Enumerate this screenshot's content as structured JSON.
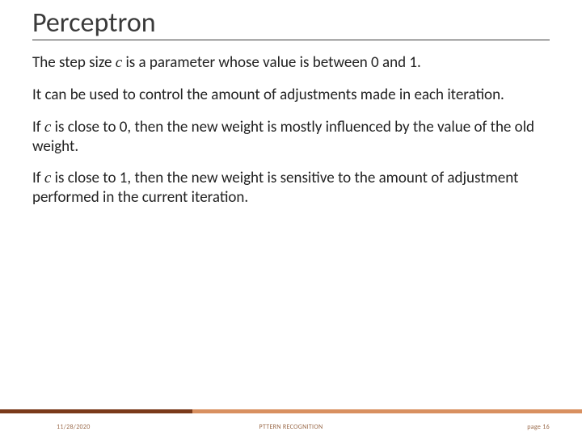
{
  "title": "Perceptron",
  "paragraphs": {
    "p1a": "The step size ",
    "p1var": "c",
    "p1b": " is a parameter whose value is between 0 and 1.",
    "p2": "It can be used to control the amount of adjustments made in each iteration.",
    "p3a": "If ",
    "p3var": "c",
    "p3b": " is close to 0, then the new weight is mostly influenced by the value of the old weight.",
    "p4a": "If ",
    "p4var": "c",
    "p4b": " is close to 1, then the new weight is sensitive to the amount of adjustment performed in the current iteration."
  },
  "footer": {
    "date": "11/28/2020",
    "center": "PTTERN RECOGNITION",
    "page": "page 16"
  },
  "colors": {
    "bar_left": "#7a3a1a",
    "bar_right": "#d89060",
    "text": "#222222",
    "title": "#3a3a3a",
    "footer_text": "#9a6a4a"
  }
}
